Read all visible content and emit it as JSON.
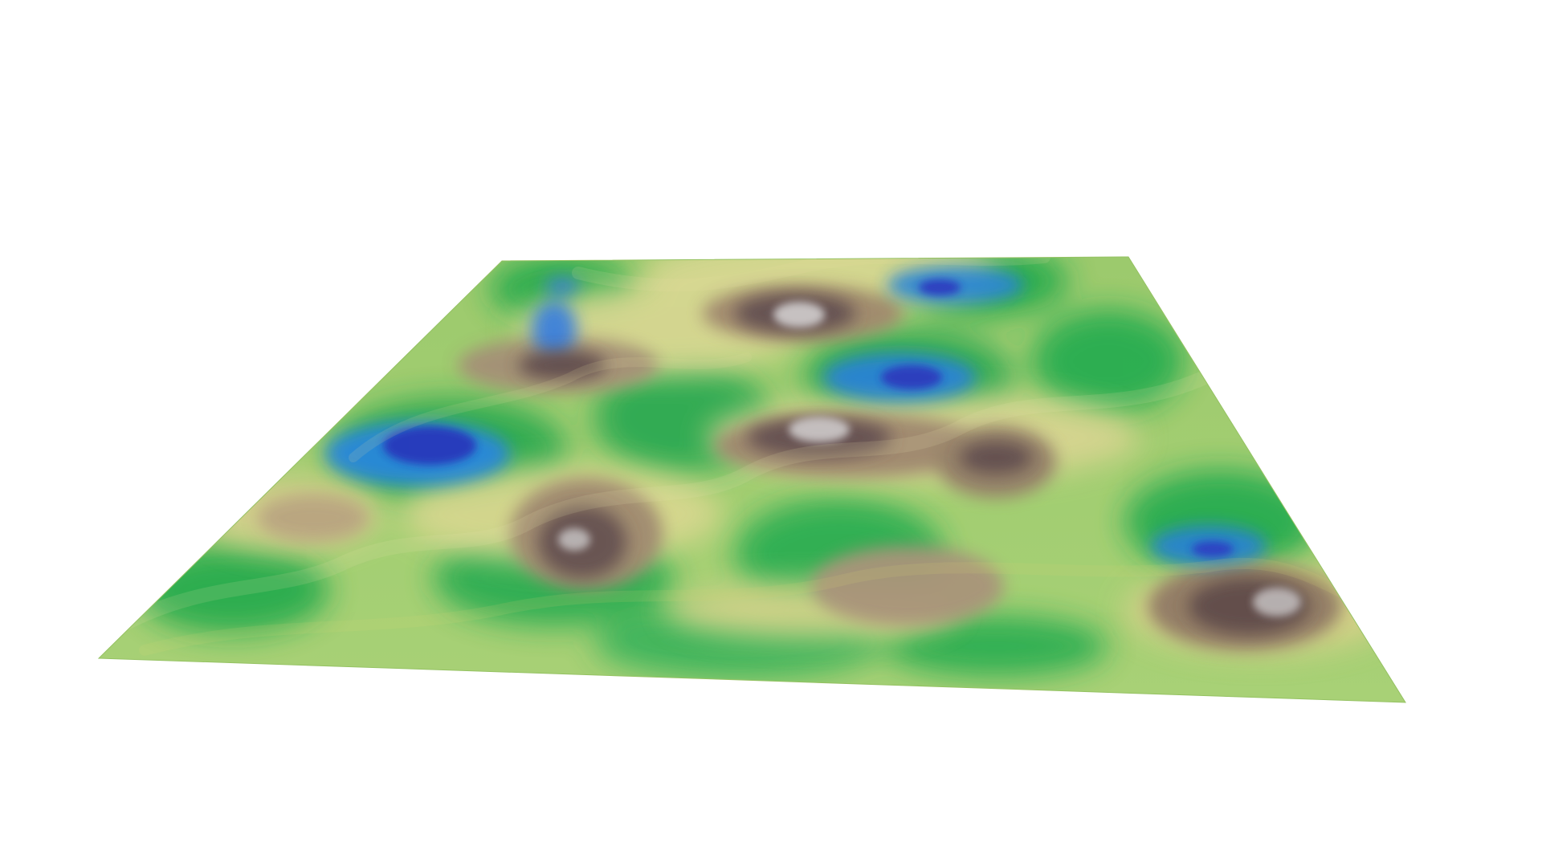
{
  "scene": {
    "background_color": "#ffffff",
    "palette": {
      "deep_water": "#1f2fb8",
      "shallow_water": "#1f86d6",
      "lowland_green": "#1aa83c",
      "plain_green": "#9dcb68",
      "sand_yellow": "#d9d485",
      "hill_tan": "#a58e6c",
      "mountain_brown": "#5f4a49",
      "peak_gray": "#c9c4c3"
    },
    "legend": [],
    "labels": []
  }
}
